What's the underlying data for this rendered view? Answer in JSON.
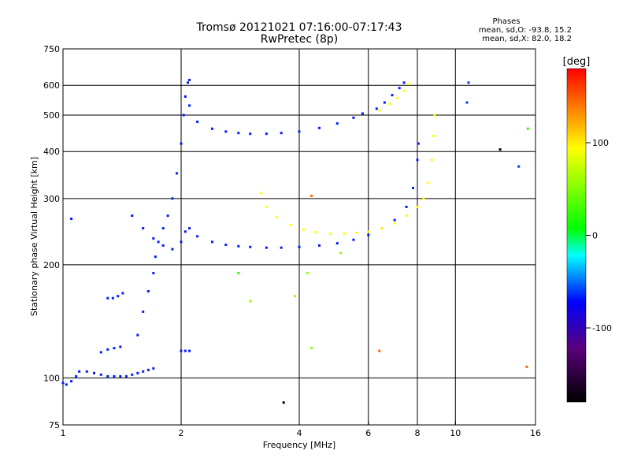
{
  "title_line1": "Tromsø 20121021 07:16:00-07:17:43",
  "title_line2": "RwPretec (8p)",
  "stats": {
    "heading": "Phases",
    "line1": "mean, sd,O: -93.8, 15.2",
    "line2": "mean, sd,X:  82.0, 18.2"
  },
  "chart_data": {
    "type": "scatter",
    "title": "Tromsø 20121021 07:16:00-07:17:43",
    "subtitle": "RwPretec (8p)",
    "xlabel": "Frequency [MHz]",
    "ylabel": "Stationary phase Virtual Height [km]",
    "x_scale": "log",
    "y_scale": "log",
    "xlim": [
      1,
      16
    ],
    "ylim": [
      75,
      750
    ],
    "x_ticks": [
      1,
      2,
      4,
      6,
      8,
      10,
      16
    ],
    "x_tick_labels": [
      "1",
      "2",
      "4",
      "6",
      "8",
      "10",
      "16"
    ],
    "y_ticks": [
      75,
      100,
      200,
      300,
      400,
      500,
      600,
      750
    ],
    "y_tick_labels": [
      "75",
      "100",
      "200",
      "300",
      "400",
      "500",
      "600",
      "750"
    ],
    "grid": true,
    "colorbar": {
      "label": "[deg]",
      "range": [
        -180,
        180
      ],
      "ticks": [
        100,
        0,
        -100
      ],
      "tick_labels": [
        "100",
        "0",
        "-100"
      ],
      "stops": [
        "#000000",
        "#5a007a",
        "#0000ff",
        "#00ffff",
        "#00ff00",
        "#ffff00",
        "#ff0000"
      ]
    },
    "series": [
      {
        "phase": -100,
        "points": [
          [
            1.0,
            97
          ],
          [
            1.02,
            96
          ],
          [
            1.05,
            98
          ],
          [
            1.08,
            101
          ],
          [
            1.1,
            104
          ],
          [
            1.15,
            104
          ],
          [
            1.2,
            103
          ],
          [
            1.25,
            102
          ],
          [
            1.3,
            101
          ],
          [
            1.35,
            101
          ],
          [
            1.4,
            101
          ],
          [
            1.45,
            101
          ],
          [
            1.5,
            102
          ],
          [
            1.55,
            103
          ],
          [
            1.6,
            104
          ],
          [
            1.65,
            105
          ],
          [
            1.7,
            106
          ]
        ]
      },
      {
        "phase": -100,
        "points": [
          [
            1.3,
            163
          ],
          [
            1.34,
            163
          ],
          [
            1.38,
            165
          ],
          [
            1.42,
            168
          ]
        ]
      },
      {
        "phase": -100,
        "points": [
          [
            1.25,
            117
          ],
          [
            1.3,
            119
          ],
          [
            1.35,
            120
          ],
          [
            1.4,
            121
          ]
        ]
      },
      {
        "phase": -100,
        "points": [
          [
            1.05,
            265
          ]
        ]
      },
      {
        "phase": -100,
        "points": [
          [
            1.55,
            130
          ],
          [
            1.6,
            150
          ],
          [
            1.65,
            170
          ],
          [
            1.7,
            190
          ],
          [
            1.72,
            210
          ],
          [
            1.75,
            230
          ],
          [
            1.8,
            250
          ],
          [
            1.85,
            270
          ],
          [
            1.9,
            300
          ],
          [
            1.95,
            350
          ],
          [
            2.0,
            420
          ],
          [
            2.03,
            500
          ],
          [
            2.05,
            560
          ],
          [
            2.08,
            610
          ],
          [
            2.1,
            620
          ]
        ]
      },
      {
        "phase": -100,
        "points": [
          [
            2.0,
            118
          ],
          [
            2.05,
            118
          ],
          [
            2.1,
            118
          ]
        ]
      },
      {
        "phase": -100,
        "points": [
          [
            1.5,
            270
          ],
          [
            1.6,
            250
          ],
          [
            1.7,
            235
          ],
          [
            1.8,
            225
          ],
          [
            1.9,
            220
          ],
          [
            2.0,
            230
          ],
          [
            2.05,
            245
          ]
        ]
      },
      {
        "phase": -100,
        "points": [
          [
            2.1,
            250
          ],
          [
            2.2,
            238
          ],
          [
            2.4,
            230
          ],
          [
            2.6,
            226
          ],
          [
            2.8,
            224
          ],
          [
            3.0,
            223
          ],
          [
            3.3,
            222
          ],
          [
            3.6,
            222
          ],
          [
            4.0,
            223
          ],
          [
            4.5,
            225
          ],
          [
            5.0,
            228
          ],
          [
            5.5,
            233
          ],
          [
            6.0,
            240
          ],
          [
            6.5,
            250
          ],
          [
            7.0,
            263
          ],
          [
            7.5,
            285
          ],
          [
            7.8,
            320
          ],
          [
            8.0,
            380
          ],
          [
            8.05,
            420
          ]
        ]
      },
      {
        "phase": -100,
        "points": [
          [
            2.1,
            530
          ],
          [
            2.2,
            480
          ],
          [
            2.4,
            460
          ],
          [
            2.6,
            452
          ],
          [
            2.8,
            448
          ],
          [
            3.0,
            446
          ],
          [
            3.3,
            446
          ],
          [
            3.6,
            448
          ],
          [
            4.0,
            452
          ],
          [
            4.5,
            462
          ],
          [
            5.0,
            475
          ],
          [
            5.5,
            492
          ],
          [
            5.8,
            505
          ]
        ]
      },
      {
        "phase": -100,
        "points": [
          [
            6.3,
            520
          ],
          [
            6.6,
            540
          ],
          [
            6.9,
            565
          ],
          [
            7.2,
            590
          ],
          [
            7.4,
            610
          ]
        ]
      },
      {
        "phase": 100,
        "points": [
          [
            3.2,
            310
          ],
          [
            3.3,
            285
          ],
          [
            3.5,
            268
          ],
          [
            3.8,
            255
          ],
          [
            4.1,
            248
          ],
          [
            4.4,
            244
          ],
          [
            4.8,
            242
          ],
          [
            5.2,
            242
          ],
          [
            5.6,
            243
          ],
          [
            6.0,
            245
          ],
          [
            6.5,
            250
          ],
          [
            7.0,
            258
          ],
          [
            7.5,
            270
          ],
          [
            8.0,
            285
          ],
          [
            8.3,
            300
          ],
          [
            8.5,
            330
          ],
          [
            8.7,
            380
          ],
          [
            8.8,
            440
          ],
          [
            8.85,
            500
          ]
        ]
      },
      {
        "phase": 100,
        "points": [
          [
            6.4,
            515
          ],
          [
            6.8,
            535
          ],
          [
            7.1,
            555
          ],
          [
            7.4,
            580
          ],
          [
            7.6,
            605
          ]
        ]
      },
      {
        "phase": 60,
        "points": [
          [
            3.0,
            160
          ],
          [
            4.2,
            190
          ],
          [
            4.3,
            120
          ],
          [
            5.1,
            215
          ],
          [
            3.9,
            165
          ]
        ]
      },
      {
        "phase": -180,
        "points": [
          [
            3.65,
            86
          ],
          [
            13.0,
            405
          ]
        ]
      },
      {
        "phase": 150,
        "points": [
          [
            4.3,
            305
          ],
          [
            6.4,
            118
          ],
          [
            15.2,
            107
          ]
        ]
      },
      {
        "phase": 20,
        "points": [
          [
            15.3,
            460
          ],
          [
            2.8,
            190
          ]
        ]
      },
      {
        "phase": -90,
        "points": [
          [
            10.7,
            540
          ],
          [
            10.8,
            610
          ],
          [
            14.5,
            365
          ]
        ]
      }
    ]
  }
}
